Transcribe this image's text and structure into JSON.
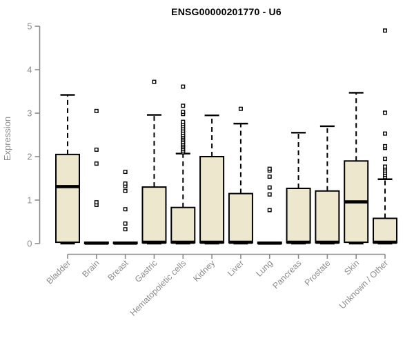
{
  "chart_data": {
    "type": "boxplot",
    "title": "ENSG00000201770 - U6",
    "ylabel": "Expression",
    "xlabel": "",
    "ylim": [
      0,
      5
    ],
    "yticks": [
      0,
      1,
      2,
      3,
      4,
      5
    ],
    "grid": false,
    "legend": "none",
    "box_fill": "#ede8cd",
    "box_stroke": "#000000",
    "axis_color": "#8c8c8c",
    "categories": [
      "Bladder",
      "Brain",
      "Breast",
      "Gastric",
      "Hematopoietic cells",
      "Kidney",
      "Liver",
      "Lung",
      "Pancreas",
      "Prostate",
      "Skin",
      "Unknown / Other"
    ],
    "boxes": [
      {
        "category": "Bladder",
        "low": 0,
        "q1": 0.03,
        "median": 1.31,
        "q3": 2.05,
        "high": 3.42,
        "outliers": []
      },
      {
        "category": "Brain",
        "low": 0,
        "q1": 0,
        "median": 0.01,
        "q3": 0.03,
        "high": 0.03,
        "outliers": [
          0.89,
          0.95,
          1.84,
          2.16,
          3.05
        ]
      },
      {
        "category": "Breast",
        "low": 0,
        "q1": 0,
        "median": 0.01,
        "q3": 0.03,
        "high": 0.03,
        "outliers": [
          0.33,
          0.46,
          0.79,
          1.21,
          1.32,
          1.38,
          1.65
        ]
      },
      {
        "category": "Gastric",
        "low": 0,
        "q1": 0.02,
        "median": 0.03,
        "q3": 1.3,
        "high": 2.96,
        "outliers": [
          3.72
        ]
      },
      {
        "category": "Hematopoietic cells",
        "low": 0,
        "q1": 0.02,
        "median": 0.03,
        "q3": 0.83,
        "high": 2.07,
        "outliers": [
          2.1,
          2.14,
          2.18,
          2.22,
          2.26,
          2.3,
          2.34,
          2.38,
          2.42,
          2.46,
          2.5,
          2.55,
          2.6,
          2.65,
          2.7,
          2.75,
          2.8,
          2.98,
          3.03,
          3.17,
          3.61
        ]
      },
      {
        "category": "Kidney",
        "low": 0,
        "q1": 0.02,
        "median": 0.03,
        "q3": 2.0,
        "high": 2.95,
        "outliers": []
      },
      {
        "category": "Liver",
        "low": 0,
        "q1": 0.02,
        "median": 0.03,
        "q3": 1.15,
        "high": 2.76,
        "outliers": [
          3.1
        ]
      },
      {
        "category": "Lung",
        "low": 0,
        "q1": 0,
        "median": 0.01,
        "q3": 0.03,
        "high": 0.03,
        "outliers": [
          0.77,
          1.13,
          1.29,
          1.54,
          1.68,
          1.72
        ]
      },
      {
        "category": "Pancreas",
        "low": 0,
        "q1": 0.02,
        "median": 0.03,
        "q3": 1.27,
        "high": 2.55,
        "outliers": []
      },
      {
        "category": "Prostate",
        "low": 0,
        "q1": 0.02,
        "median": 0.03,
        "q3": 1.21,
        "high": 2.7,
        "outliers": []
      },
      {
        "category": "Skin",
        "low": 0,
        "q1": 0.03,
        "median": 0.96,
        "q3": 1.9,
        "high": 3.47,
        "outliers": []
      },
      {
        "category": "Unknown / Other",
        "low": 0,
        "q1": 0.02,
        "median": 0.03,
        "q3": 0.58,
        "high": 1.48,
        "outliers": [
          1.53,
          1.58,
          1.63,
          1.68,
          1.73,
          1.77,
          1.95,
          2.2,
          2.24,
          2.53,
          3.01,
          4.9
        ]
      }
    ]
  }
}
